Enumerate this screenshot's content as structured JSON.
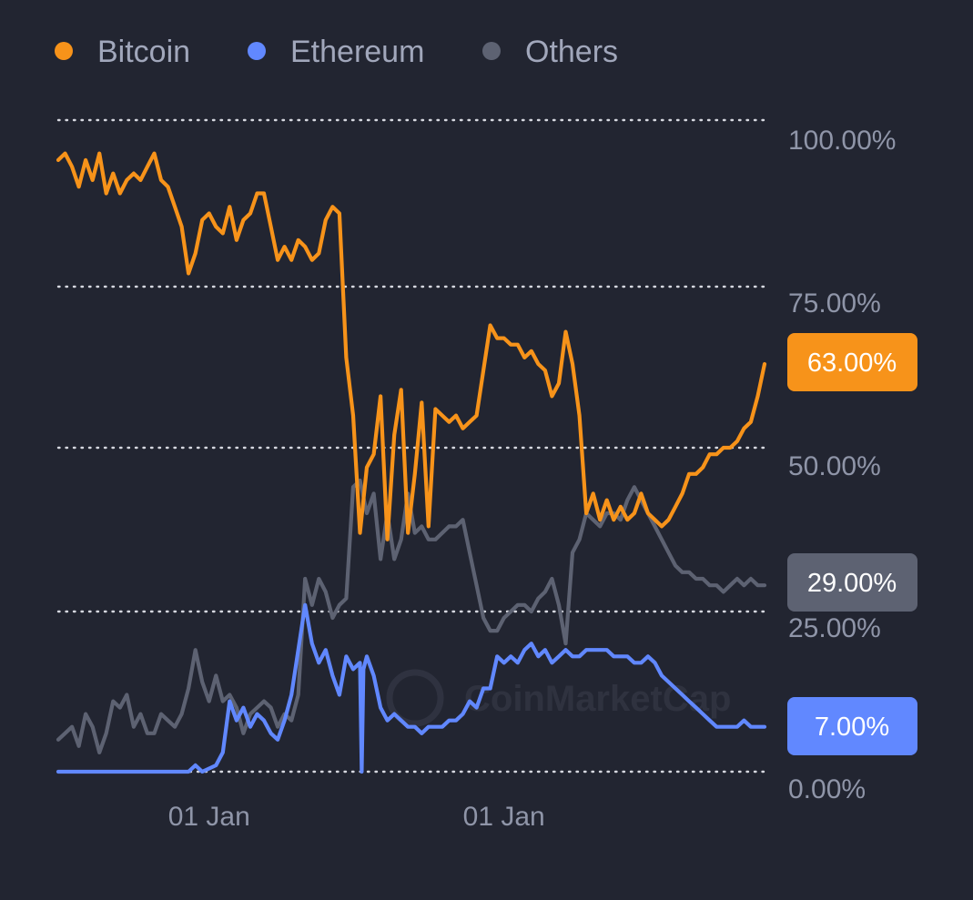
{
  "chart_data": {
    "type": "line",
    "title": "",
    "xlabel": "",
    "ylabel": "",
    "ylim": [
      0,
      100
    ],
    "y_ticks": [
      "100.00%",
      "75.00%",
      "50.00%",
      "25.00%",
      "0.00%"
    ],
    "y_tick_values": [
      100,
      75,
      50,
      25,
      0
    ],
    "x_ticks": [
      {
        "label": "01 Jan",
        "x": 44
      },
      {
        "label": "01 Jan",
        "x": 130
      }
    ],
    "xlim": [
      0,
      206
    ],
    "grid": true,
    "legend_position": "top-left",
    "series": [
      {
        "name": "Bitcoin",
        "color": "#f7931a",
        "current_label": "63.00%",
        "points": [
          [
            0,
            94
          ],
          [
            2,
            95
          ],
          [
            4,
            93
          ],
          [
            6,
            90
          ],
          [
            8,
            94
          ],
          [
            10,
            91
          ],
          [
            12,
            95
          ],
          [
            14,
            89
          ],
          [
            16,
            92
          ],
          [
            18,
            89
          ],
          [
            20,
            91
          ],
          [
            22,
            92
          ],
          [
            24,
            91
          ],
          [
            26,
            93
          ],
          [
            28,
            95
          ],
          [
            30,
            91
          ],
          [
            32,
            90
          ],
          [
            34,
            87
          ],
          [
            36,
            84
          ],
          [
            38,
            77
          ],
          [
            40,
            80
          ],
          [
            42,
            85
          ],
          [
            44,
            86
          ],
          [
            46,
            84
          ],
          [
            48,
            83
          ],
          [
            50,
            87
          ],
          [
            52,
            82
          ],
          [
            54,
            85
          ],
          [
            56,
            86
          ],
          [
            58,
            89
          ],
          [
            60,
            89
          ],
          [
            62,
            84
          ],
          [
            64,
            79
          ],
          [
            66,
            81
          ],
          [
            68,
            79
          ],
          [
            70,
            82
          ],
          [
            72,
            81
          ],
          [
            74,
            79
          ],
          [
            76,
            80
          ],
          [
            78,
            85
          ],
          [
            80,
            87
          ],
          [
            82,
            86
          ],
          [
            84,
            64
          ],
          [
            86,
            55
          ],
          [
            88,
            37
          ],
          [
            90,
            47
          ],
          [
            92,
            49
          ],
          [
            94,
            58
          ],
          [
            96,
            36
          ],
          [
            98,
            52
          ],
          [
            100,
            59
          ],
          [
            102,
            37
          ],
          [
            104,
            46
          ],
          [
            106,
            57
          ],
          [
            108,
            38
          ],
          [
            110,
            56
          ],
          [
            112,
            55
          ],
          [
            114,
            54
          ],
          [
            116,
            55
          ],
          [
            118,
            53
          ],
          [
            120,
            54
          ],
          [
            122,
            55
          ],
          [
            124,
            62
          ],
          [
            126,
            69
          ],
          [
            128,
            67
          ],
          [
            130,
            67
          ],
          [
            132,
            66
          ],
          [
            134,
            66
          ],
          [
            136,
            64
          ],
          [
            138,
            65
          ],
          [
            140,
            63
          ],
          [
            142,
            62
          ],
          [
            144,
            58
          ],
          [
            146,
            60
          ],
          [
            148,
            68
          ],
          [
            150,
            63
          ],
          [
            152,
            55
          ],
          [
            154,
            40
          ],
          [
            156,
            43
          ],
          [
            158,
            39
          ],
          [
            160,
            42
          ],
          [
            162,
            39
          ],
          [
            164,
            41
          ],
          [
            166,
            39
          ],
          [
            168,
            40
          ],
          [
            170,
            43
          ],
          [
            172,
            40
          ],
          [
            174,
            39
          ],
          [
            176,
            38
          ],
          [
            178,
            39
          ],
          [
            180,
            41
          ],
          [
            182,
            43
          ],
          [
            184,
            46
          ],
          [
            186,
            46
          ],
          [
            188,
            47
          ],
          [
            190,
            49
          ],
          [
            192,
            49
          ],
          [
            194,
            50
          ],
          [
            196,
            50
          ],
          [
            198,
            51
          ],
          [
            200,
            53
          ],
          [
            202,
            54
          ],
          [
            204,
            58
          ],
          [
            206,
            63
          ]
        ]
      },
      {
        "name": "Ethereum",
        "color": "#6188ff",
        "current_label": "7.00%",
        "points": [
          [
            0,
            0
          ],
          [
            10,
            0
          ],
          [
            20,
            0
          ],
          [
            30,
            0
          ],
          [
            38,
            0
          ],
          [
            40,
            1
          ],
          [
            42,
            0
          ],
          [
            46,
            1
          ],
          [
            48,
            3
          ],
          [
            50,
            11
          ],
          [
            52,
            8
          ],
          [
            54,
            10
          ],
          [
            56,
            7
          ],
          [
            58,
            9
          ],
          [
            60,
            8
          ],
          [
            62,
            6
          ],
          [
            64,
            5
          ],
          [
            66,
            8
          ],
          [
            68,
            12
          ],
          [
            70,
            19
          ],
          [
            72,
            26
          ],
          [
            74,
            20
          ],
          [
            76,
            17
          ],
          [
            78,
            19
          ],
          [
            80,
            15
          ],
          [
            82,
            12
          ],
          [
            84,
            18
          ],
          [
            86,
            16
          ],
          [
            88,
            17
          ],
          [
            88.5,
            0
          ],
          [
            89,
            16
          ],
          [
            90,
            18
          ],
          [
            92,
            15
          ],
          [
            94,
            10
          ],
          [
            96,
            8
          ],
          [
            98,
            9
          ],
          [
            100,
            8
          ],
          [
            102,
            7
          ],
          [
            104,
            7
          ],
          [
            106,
            6
          ],
          [
            108,
            7
          ],
          [
            110,
            7
          ],
          [
            112,
            7
          ],
          [
            114,
            8
          ],
          [
            116,
            8
          ],
          [
            118,
            9
          ],
          [
            120,
            11
          ],
          [
            122,
            10
          ],
          [
            124,
            13
          ],
          [
            126,
            13
          ],
          [
            128,
            18
          ],
          [
            130,
            17
          ],
          [
            132,
            18
          ],
          [
            134,
            17
          ],
          [
            136,
            19
          ],
          [
            138,
            20
          ],
          [
            140,
            18
          ],
          [
            142,
            19
          ],
          [
            144,
            17
          ],
          [
            146,
            18
          ],
          [
            148,
            19
          ],
          [
            150,
            18
          ],
          [
            152,
            18
          ],
          [
            154,
            19
          ],
          [
            156,
            19
          ],
          [
            158,
            19
          ],
          [
            160,
            19
          ],
          [
            162,
            18
          ],
          [
            164,
            18
          ],
          [
            166,
            18
          ],
          [
            168,
            17
          ],
          [
            170,
            17
          ],
          [
            172,
            18
          ],
          [
            174,
            17
          ],
          [
            176,
            15
          ],
          [
            178,
            14
          ],
          [
            180,
            13
          ],
          [
            182,
            12
          ],
          [
            184,
            11
          ],
          [
            186,
            10
          ],
          [
            188,
            9
          ],
          [
            190,
            8
          ],
          [
            192,
            7
          ],
          [
            194,
            7
          ],
          [
            196,
            7
          ],
          [
            198,
            7
          ],
          [
            200,
            8
          ],
          [
            202,
            7
          ],
          [
            206,
            7
          ]
        ]
      },
      {
        "name": "Others",
        "color": "#5d6272",
        "current_label": "29.00%",
        "points": [
          [
            0,
            5
          ],
          [
            2,
            6
          ],
          [
            4,
            7
          ],
          [
            6,
            4
          ],
          [
            8,
            9
          ],
          [
            10,
            7
          ],
          [
            12,
            3
          ],
          [
            14,
            6
          ],
          [
            16,
            11
          ],
          [
            18,
            10
          ],
          [
            20,
            12
          ],
          [
            22,
            7
          ],
          [
            24,
            9
          ],
          [
            26,
            6
          ],
          [
            28,
            6
          ],
          [
            30,
            9
          ],
          [
            32,
            8
          ],
          [
            34,
            7
          ],
          [
            36,
            9
          ],
          [
            38,
            13
          ],
          [
            40,
            19
          ],
          [
            42,
            14
          ],
          [
            44,
            11
          ],
          [
            46,
            15
          ],
          [
            48,
            11
          ],
          [
            50,
            12
          ],
          [
            52,
            10
          ],
          [
            54,
            6
          ],
          [
            56,
            9
          ],
          [
            58,
            10
          ],
          [
            60,
            11
          ],
          [
            62,
            10
          ],
          [
            64,
            7
          ],
          [
            66,
            9
          ],
          [
            68,
            8
          ],
          [
            70,
            12
          ],
          [
            72,
            30
          ],
          [
            74,
            26
          ],
          [
            76,
            30
          ],
          [
            78,
            28
          ],
          [
            80,
            24
          ],
          [
            82,
            26
          ],
          [
            84,
            27
          ],
          [
            86,
            44
          ],
          [
            88,
            45
          ],
          [
            90,
            40
          ],
          [
            92,
            43
          ],
          [
            94,
            33
          ],
          [
            96,
            40
          ],
          [
            98,
            33
          ],
          [
            100,
            36
          ],
          [
            102,
            43
          ],
          [
            104,
            37
          ],
          [
            106,
            38
          ],
          [
            108,
            36
          ],
          [
            110,
            36
          ],
          [
            112,
            37
          ],
          [
            114,
            38
          ],
          [
            116,
            38
          ],
          [
            118,
            39
          ],
          [
            120,
            34
          ],
          [
            122,
            29
          ],
          [
            124,
            24
          ],
          [
            126,
            22
          ],
          [
            128,
            22
          ],
          [
            130,
            24
          ],
          [
            132,
            25
          ],
          [
            134,
            26
          ],
          [
            136,
            26
          ],
          [
            138,
            25
          ],
          [
            140,
            27
          ],
          [
            142,
            28
          ],
          [
            144,
            30
          ],
          [
            146,
            26
          ],
          [
            148,
            20
          ],
          [
            150,
            34
          ],
          [
            152,
            36
          ],
          [
            154,
            40
          ],
          [
            156,
            39
          ],
          [
            158,
            38
          ],
          [
            160,
            40
          ],
          [
            162,
            40
          ],
          [
            164,
            39
          ],
          [
            166,
            42
          ],
          [
            168,
            44
          ],
          [
            170,
            42
          ],
          [
            172,
            40
          ],
          [
            174,
            38
          ],
          [
            176,
            36
          ],
          [
            178,
            34
          ],
          [
            180,
            32
          ],
          [
            182,
            31
          ],
          [
            184,
            31
          ],
          [
            186,
            30
          ],
          [
            188,
            30
          ],
          [
            190,
            29
          ],
          [
            192,
            29
          ],
          [
            194,
            28
          ],
          [
            196,
            29
          ],
          [
            198,
            30
          ],
          [
            200,
            29
          ],
          [
            202,
            30
          ],
          [
            204,
            29
          ],
          [
            206,
            29
          ]
        ]
      }
    ]
  },
  "watermark": "CoinMarketCap"
}
